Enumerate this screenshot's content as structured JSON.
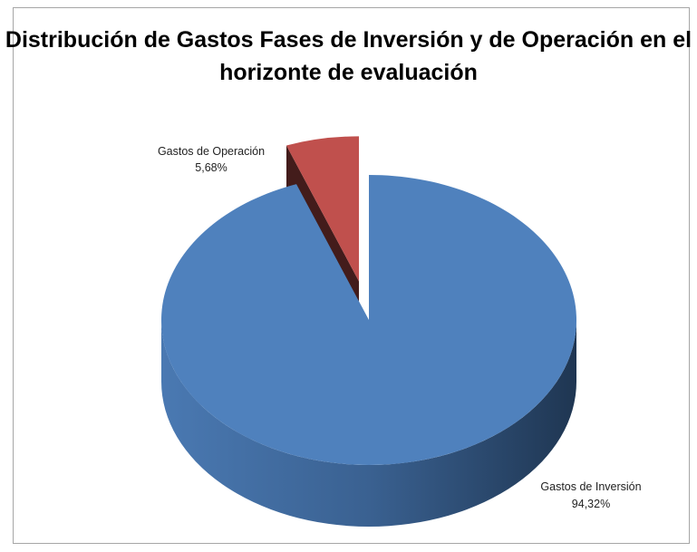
{
  "chart_data": {
    "type": "pie",
    "title_line1": "Distribución de Gastos Fases de Inversión y de Operación en el",
    "title_line2": "horizonte de evaluación",
    "slices": [
      {
        "name": "Gastos de Operación",
        "value": 5.68,
        "label": "5,68%",
        "color": "#c0504d",
        "exploded": true
      },
      {
        "name": "Gastos de Inversión",
        "value": 94.32,
        "label": "94,32%",
        "color": "#4f81bd",
        "exploded": false
      }
    ],
    "legend": "none",
    "style": "3d"
  }
}
